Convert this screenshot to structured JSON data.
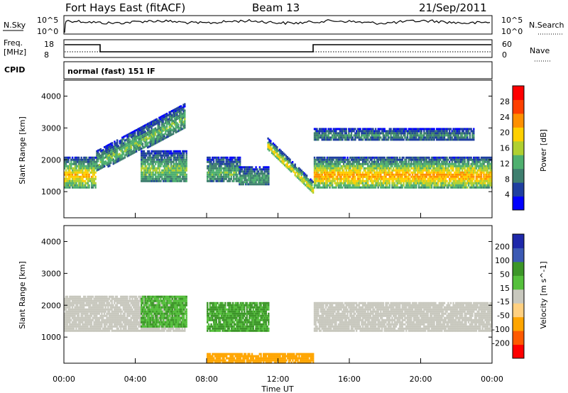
{
  "header": {
    "station": "Fort Hays East (fitACF)",
    "beam": "Beam 13",
    "date": "21/Sep/2011"
  },
  "panels": {
    "nsky": {
      "label": "N.Sky",
      "ticks": [
        "10^5",
        "10^0"
      ],
      "right_ticks": [
        "10^5",
        "10^0"
      ],
      "right_label": "N.Search"
    },
    "freq": {
      "label_top": "Freq.",
      "label_bottom": "[MHz]",
      "ticks": [
        "18",
        "8"
      ],
      "right_ticks": [
        "60",
        "0"
      ],
      "right_label": "Nave"
    },
    "cpid": {
      "label": "CPID",
      "mode": "normal (fast) 151 IF"
    }
  },
  "colors": {
    "power": [
      "#0000ff",
      "#1f3fa0",
      "#3f7f6f",
      "#4fb06f",
      "#b0d030",
      "#ffd000",
      "#ff9000",
      "#ff4000",
      "#ff0000"
    ],
    "velocity": [
      "#ff0000",
      "#ff5a00",
      "#ffa500",
      "#ffd080",
      "#c8c8be",
      "#55c03c",
      "#3c9628",
      "#3c5ab4",
      "#1e28aa"
    ]
  },
  "chart_data": [
    {
      "type": "heatmap",
      "title": "Power",
      "ylabel": "Slant Range [km]",
      "ylim": [
        180,
        4500
      ],
      "yticks": [
        "1000",
        "2000",
        "3000",
        "4000"
      ],
      "xlim": [
        "00:00",
        "24:00"
      ],
      "colorbar_label": "Power [dB]",
      "colorbar_ticks": [
        "28",
        "24",
        "20",
        "16",
        "12",
        "8",
        "4"
      ],
      "colorbar_range": [
        0,
        32
      ],
      "features": [
        {
          "name": "backscatter-early",
          "start_h": 0.0,
          "end_h": 1.8,
          "range_km": [
            1150,
            2100
          ],
          "power_db": 22
        },
        {
          "name": "rising-band",
          "start_h": 1.8,
          "end_h": 6.8,
          "range_start_km": [
            1650,
            2300
          ],
          "range_end_km": [
            3000,
            3800
          ],
          "power_db": 14
        },
        {
          "name": "band-05-07",
          "start_h": 4.3,
          "end_h": 6.9,
          "range_km": [
            1300,
            2300
          ],
          "power_db": 15
        },
        {
          "name": "band-08-09",
          "start_h": 8.0,
          "end_h": 9.9,
          "range_km": [
            1300,
            2100
          ],
          "power_db": 13
        },
        {
          "name": "band-10-11",
          "start_h": 9.8,
          "end_h": 11.5,
          "range_km": [
            1200,
            1800
          ],
          "power_db": 12
        },
        {
          "name": "descending-arc",
          "start_h": 11.4,
          "end_h": 14.0,
          "range_start_km": [
            2300,
            2700
          ],
          "range_end_km": [
            900,
            1300
          ],
          "power_db": 20
        },
        {
          "name": "band-14-24",
          "start_h": 14.0,
          "end_h": 24.0,
          "range_km": [
            1150,
            2100
          ],
          "power_db": 24
        },
        {
          "name": "upper-band-14-23",
          "start_h": 14.0,
          "end_h": 23.0,
          "range_km": [
            2650,
            3000
          ],
          "power_db": 10
        }
      ]
    },
    {
      "type": "heatmap",
      "title": "Velocity",
      "ylabel": "Slant Range [km]",
      "ylim": [
        180,
        4500
      ],
      "yticks": [
        "1000",
        "2000",
        "3000",
        "4000"
      ],
      "xlabel": "Time UT",
      "xticks": [
        "00:00",
        "04:00",
        "08:00",
        "12:00",
        "16:00",
        "20:00",
        "00:00"
      ],
      "colorbar_label": "Velocity [m s^-1]",
      "colorbar_ticks": [
        "200",
        "100",
        "50",
        "15",
        "-15",
        "-50",
        "-100",
        "-200"
      ],
      "features": [
        {
          "name": "ground-scatter-early",
          "start_h": 0.0,
          "end_h": 6.8,
          "range_km": [
            1200,
            2300
          ],
          "velocity_ms": 0
        },
        {
          "name": "green-band-05-07",
          "start_h": 4.3,
          "end_h": 6.9,
          "range_km": [
            1300,
            2300
          ],
          "velocity_ms": 30
        },
        {
          "name": "green-band-08-11",
          "start_h": 8.0,
          "end_h": 11.5,
          "range_km": [
            1200,
            2100
          ],
          "velocity_ms": 35
        },
        {
          "name": "ground-scatter-14-24",
          "start_h": 14.0,
          "end_h": 24.0,
          "range_km": [
            1200,
            2100
          ],
          "velocity_ms": 0
        },
        {
          "name": "near-range-orange",
          "start_h": 8.0,
          "end_h": 14.0,
          "range_km": [
            200,
            500
          ],
          "velocity_ms": -60
        }
      ]
    }
  ]
}
